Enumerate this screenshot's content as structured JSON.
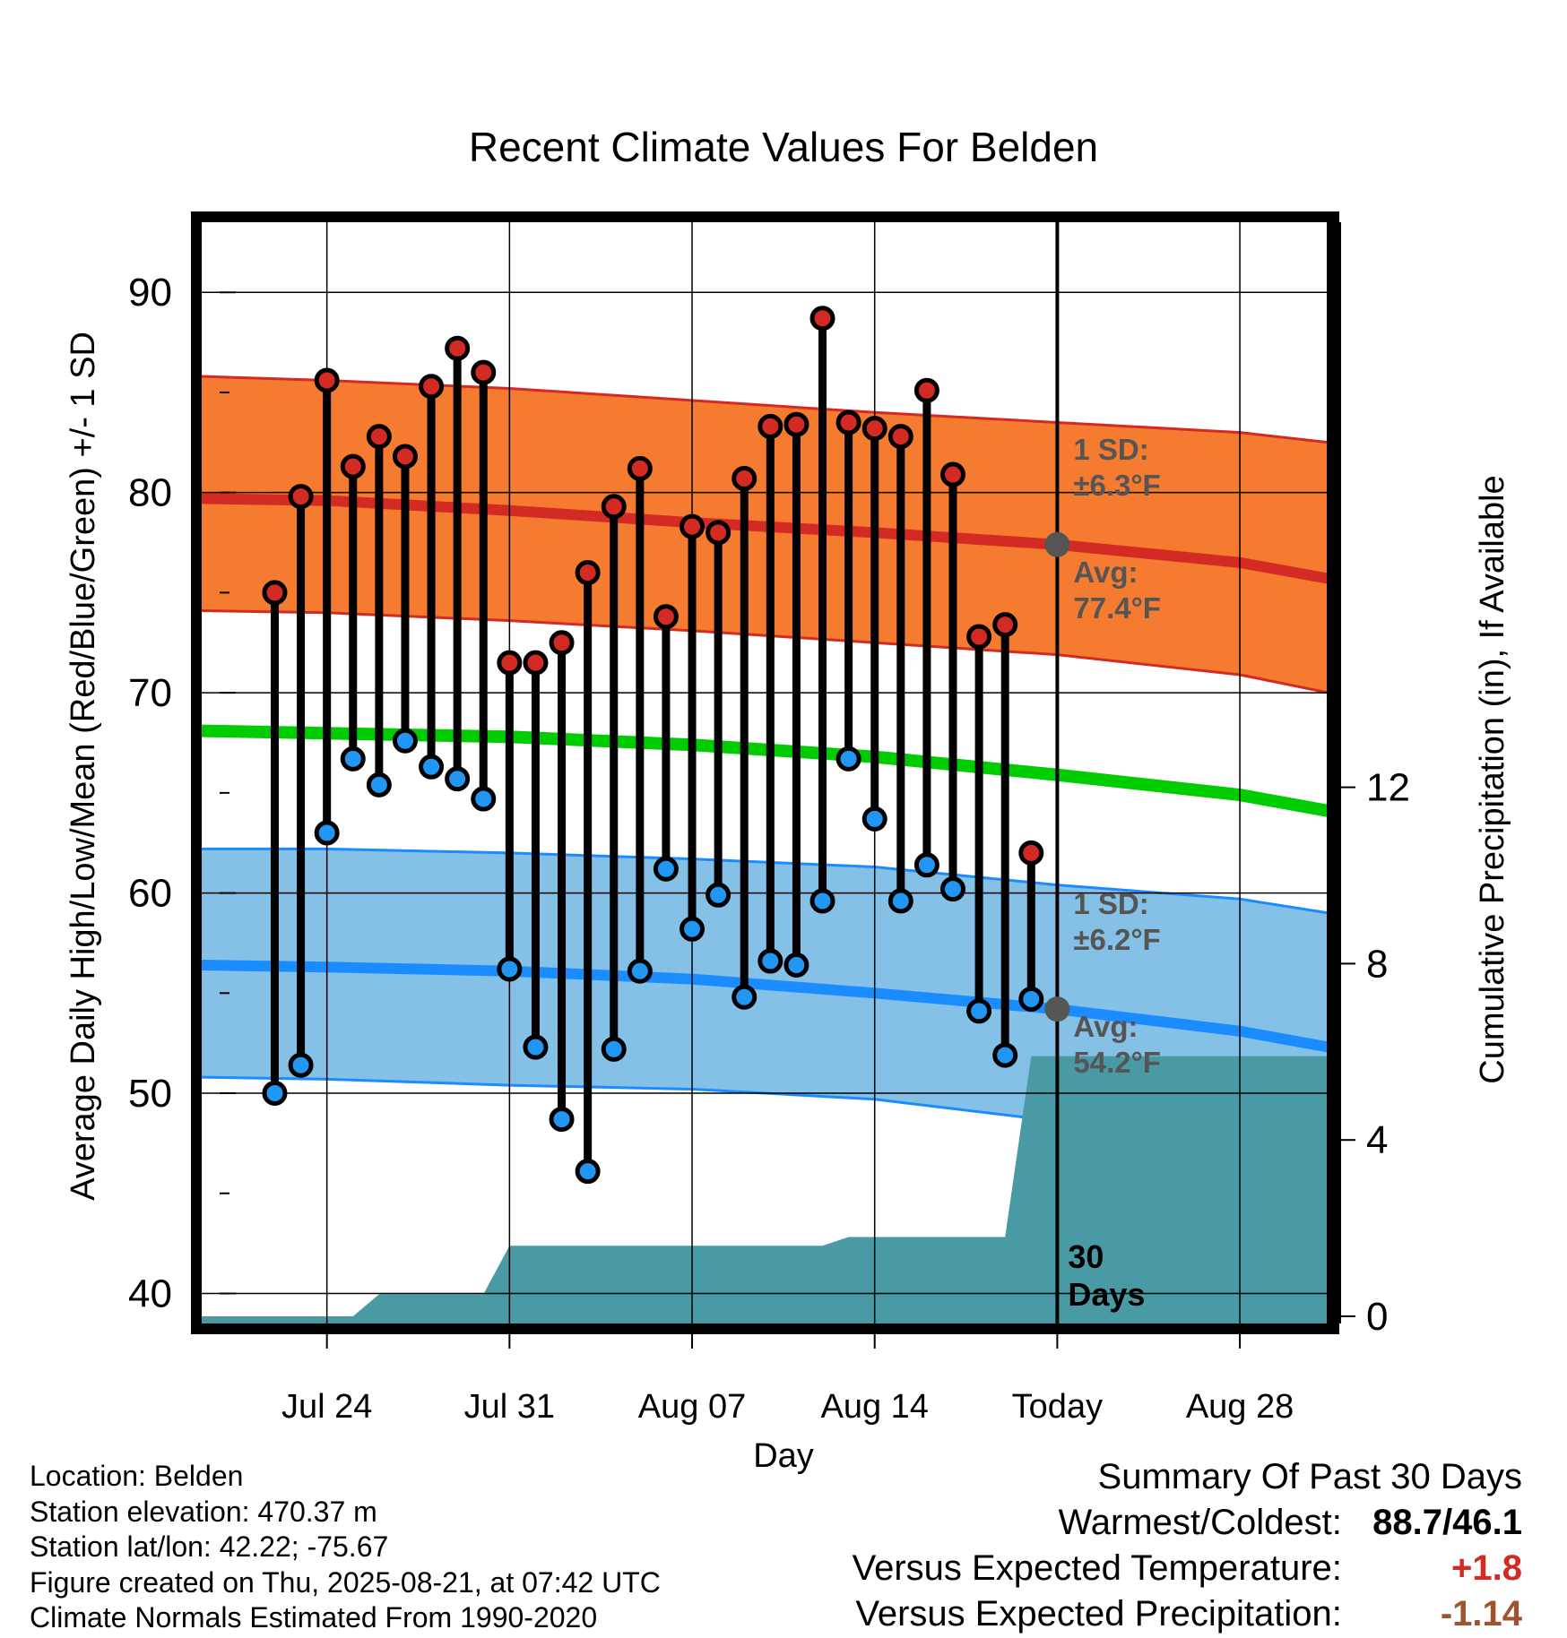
{
  "chart_data": {
    "type": "line",
    "title": "Recent Climate Values For Belden",
    "xlabel": "Day",
    "ylabel": "Average Daily High/Low/Mean (Red/Blue/Green) +/- 1 SD",
    "y2label": "Cumulative Precipitation (in), If Available",
    "ylim": [
      38.5,
      93.5
    ],
    "y_ticks": [
      40,
      50,
      60,
      70,
      80,
      90
    ],
    "y2lim": [
      0,
      20
    ],
    "y2_ticks": [
      0,
      4,
      8,
      12
    ],
    "x_range_days": [
      -32.8,
      10.4
    ],
    "x_ticks": [
      {
        "day": -28,
        "label": "Jul 24"
      },
      {
        "day": -21,
        "label": "Jul 31"
      },
      {
        "day": -14,
        "label": "Aug 07"
      },
      {
        "day": -7,
        "label": "Aug 14"
      },
      {
        "day": 0,
        "label": "Today"
      },
      {
        "day": 7,
        "label": "Aug 28"
      }
    ],
    "grid": true,
    "today_day": 0,
    "daily": [
      {
        "day": -30,
        "high": 75.0,
        "low": 50.0
      },
      {
        "day": -29,
        "high": 79.8,
        "low": 51.4
      },
      {
        "day": -28,
        "high": 85.6,
        "low": 63.0
      },
      {
        "day": -27,
        "high": 81.3,
        "low": 66.7
      },
      {
        "day": -26,
        "high": 82.8,
        "low": 65.4
      },
      {
        "day": -25,
        "high": 81.8,
        "low": 67.6
      },
      {
        "day": -24,
        "high": 85.3,
        "low": 66.3
      },
      {
        "day": -23,
        "high": 87.2,
        "low": 65.7
      },
      {
        "day": -22,
        "high": 86.0,
        "low": 64.7
      },
      {
        "day": -21,
        "high": 71.5,
        "low": 56.2
      },
      {
        "day": -20,
        "high": 71.5,
        "low": 52.3
      },
      {
        "day": -19,
        "high": 72.5,
        "low": 48.7
      },
      {
        "day": -18,
        "high": 76.0,
        "low": 46.1
      },
      {
        "day": -17,
        "high": 79.3,
        "low": 52.2
      },
      {
        "day": -16,
        "high": 81.2,
        "low": 56.1
      },
      {
        "day": -15,
        "high": 73.8,
        "low": 61.2
      },
      {
        "day": -14,
        "high": 78.3,
        "low": 58.2
      },
      {
        "day": -13,
        "high": 78.0,
        "low": 59.9
      },
      {
        "day": -12,
        "high": 80.7,
        "low": 54.8
      },
      {
        "day": -11,
        "high": 83.3,
        "low": 56.6
      },
      {
        "day": -10,
        "high": 83.4,
        "low": 56.4
      },
      {
        "day": -9,
        "high": 88.7,
        "low": 59.6
      },
      {
        "day": -8,
        "high": 83.5,
        "low": 66.7
      },
      {
        "day": -7,
        "high": 83.2,
        "low": 63.7
      },
      {
        "day": -6,
        "high": 82.8,
        "low": 59.6
      },
      {
        "day": -5,
        "high": 85.1,
        "low": 61.4
      },
      {
        "day": -4,
        "high": 80.9,
        "low": 60.2
      },
      {
        "day": -3,
        "high": 72.8,
        "low": 54.1
      },
      {
        "day": -2,
        "high": 73.4,
        "low": 51.9
      },
      {
        "day": -1,
        "high": 62.0,
        "low": 54.7
      }
    ],
    "normal_high": [
      {
        "day": -32.8,
        "avg": 79.7,
        "upper": 85.8,
        "lower": 74.1
      },
      {
        "day": -28,
        "avg": 79.6,
        "upper": 85.6,
        "lower": 74.0
      },
      {
        "day": -21,
        "avg": 79.1,
        "upper": 85.2,
        "lower": 73.6
      },
      {
        "day": -14,
        "avg": 78.5,
        "upper": 84.6,
        "lower": 73.1
      },
      {
        "day": -7,
        "avg": 78.0,
        "upper": 84.0,
        "lower": 72.5
      },
      {
        "day": 0,
        "avg": 77.4,
        "upper": 83.5,
        "lower": 71.9
      },
      {
        "day": 7,
        "avg": 76.5,
        "upper": 83.0,
        "lower": 70.9
      },
      {
        "day": 10.4,
        "avg": 75.7,
        "upper": 82.5,
        "lower": 70.0
      }
    ],
    "normal_low": [
      {
        "day": -32.8,
        "avg": 56.4,
        "upper": 62.2,
        "lower": 50.8
      },
      {
        "day": -28,
        "avg": 56.3,
        "upper": 62.2,
        "lower": 50.7
      },
      {
        "day": -21,
        "avg": 56.1,
        "upper": 62.0,
        "lower": 50.4
      },
      {
        "day": -14,
        "avg": 55.7,
        "upper": 61.7,
        "lower": 50.2
      },
      {
        "day": -7,
        "avg": 55.0,
        "upper": 61.3,
        "lower": 49.7
      },
      {
        "day": 0,
        "avg": 54.2,
        "upper": 60.4,
        "lower": 48.6
      },
      {
        "day": 7,
        "avg": 53.1,
        "upper": 59.7,
        "lower": 47.4
      },
      {
        "day": 10.4,
        "avg": 52.3,
        "upper": 59.0,
        "lower": 46.4
      }
    ],
    "normal_mean": [
      {
        "day": -32.8,
        "value": 68.1
      },
      {
        "day": -21,
        "value": 67.8
      },
      {
        "day": -14,
        "value": 67.4
      },
      {
        "day": -7,
        "value": 66.8
      },
      {
        "day": 0,
        "value": 65.9
      },
      {
        "day": 7,
        "value": 64.9
      },
      {
        "day": 10.4,
        "value": 64.1
      }
    ],
    "precip_cumulative": [
      {
        "day": -32.8,
        "value": 0
      },
      {
        "day": -27,
        "value": 0
      },
      {
        "day": -26,
        "value": 0.5
      },
      {
        "day": -22,
        "value": 0.5
      },
      {
        "day": -21,
        "value": 1.6
      },
      {
        "day": -9,
        "value": 1.6
      },
      {
        "day": -8,
        "value": 1.8
      },
      {
        "day": -2,
        "value": 1.8
      },
      {
        "day": -1,
        "value": 5.9
      },
      {
        "day": 10.4,
        "value": 5.9
      }
    ],
    "annotations": {
      "high_sd": {
        "line1": "1 SD:",
        "line2": "±6.3°F"
      },
      "high_avg": {
        "line1": "Avg:",
        "line2": "77.4°F"
      },
      "low_sd": {
        "line1": "1 SD:",
        "line2": "±6.2°F"
      },
      "low_avg": {
        "line1": "Avg:",
        "line2": "54.2°F"
      },
      "window": {
        "line1": "30",
        "line2": "Days"
      }
    },
    "colors": {
      "high_band": "#f47b30",
      "high_line": "#d42a24",
      "low_band": "#85c0e6",
      "low_line": "#1a8cff",
      "mean_line": "#00cc00",
      "precip": "#4a9aa5",
      "high_dot": "#d42a24",
      "low_dot": "#2196f3",
      "annotation": "#555555"
    }
  },
  "metadata": {
    "location": "Location: Belden",
    "elevation": "Station elevation: 470.37 m",
    "latlon": "Station lat/lon: 42.22; -75.67",
    "created": "Figure created on Thu, 2025-08-21, at 07:42 UTC",
    "normals": "Climate Normals Estimated From 1990-2020"
  },
  "summary": {
    "title": "Summary Of Past 30 Days",
    "warm_cold_label": "Warmest/Coldest:",
    "warm_cold_value": "88.7/46.1",
    "temp_label": "Versus Expected Temperature:",
    "temp_value": "+1.8",
    "temp_color": "#d42a24",
    "precip_label": "Versus Expected Precipitation:",
    "precip_value": "-1.14",
    "precip_color": "#a0522d"
  }
}
